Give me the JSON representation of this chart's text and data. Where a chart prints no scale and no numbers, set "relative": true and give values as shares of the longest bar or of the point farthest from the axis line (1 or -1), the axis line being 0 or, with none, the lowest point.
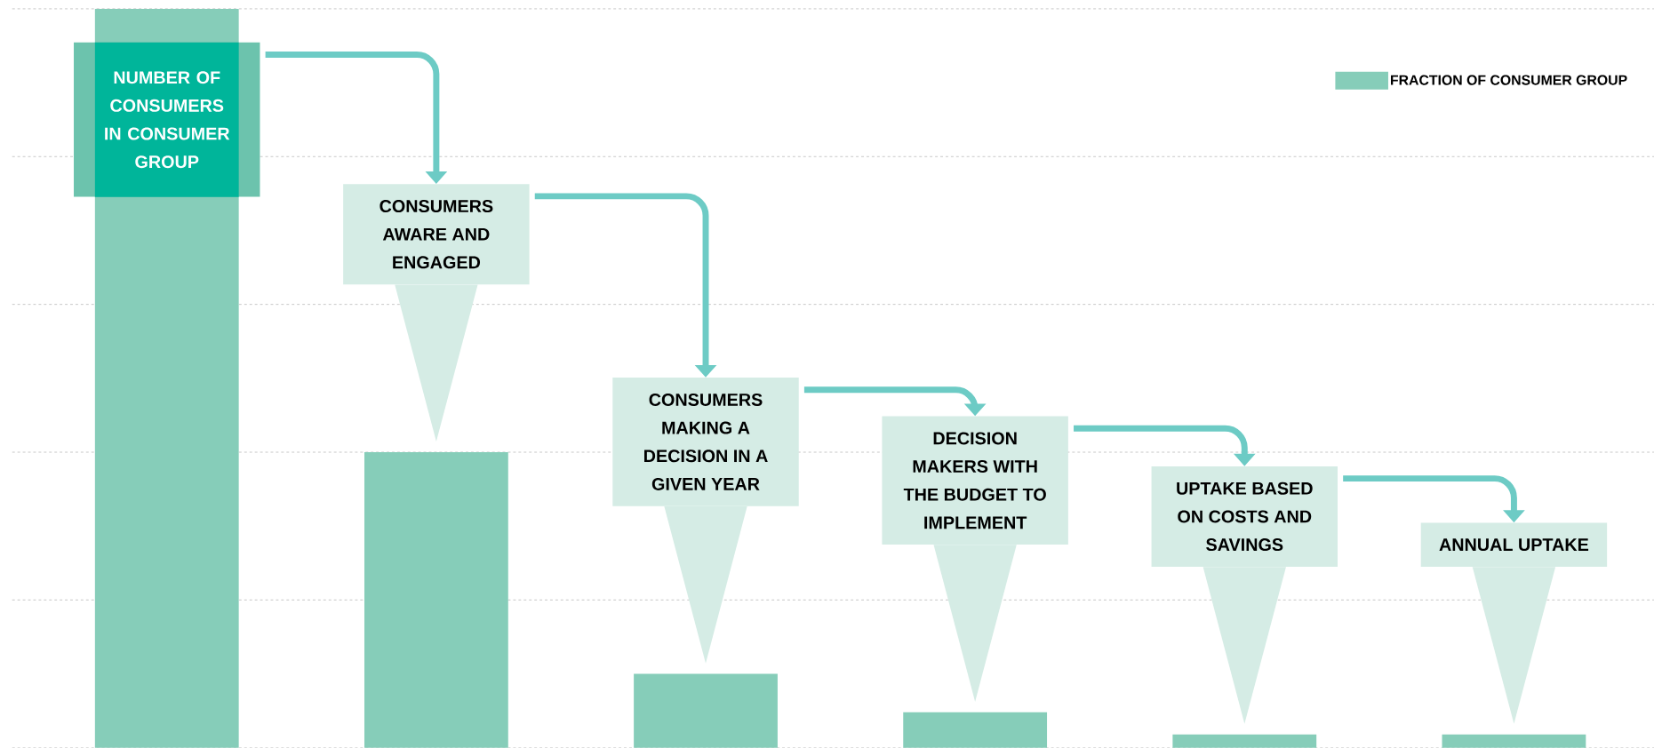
{
  "chart_data": {
    "type": "bar",
    "relative": true,
    "categories": [
      "NUMBER OF CONSUMERS IN CONSUMER GROUP",
      "CONSUMERS AWARE AND ENGAGED",
      "CONSUMERS MAKING A DECISION IN A GIVEN YEAR",
      "DECISION MAKERS WITH THE BUDGET TO IMPLEMENT",
      "UPTAKE BASED ON COSTS AND SAVINGS",
      "ANNUAL UPTAKE"
    ],
    "series": [
      {
        "name": "FRACTION OF CONSUMER GROUP",
        "color": "#86cdb9",
        "values": [
          1,
          0.4,
          0.1,
          0.048,
          0.018,
          0.018
        ]
      }
    ],
    "grid": "y",
    "legend": "top right"
  }
}
